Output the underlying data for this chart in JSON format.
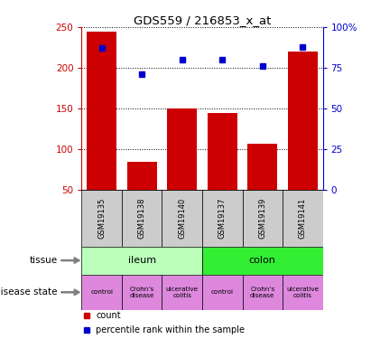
{
  "title": "GDS559 / 216853_x_at",
  "samples": [
    "GSM19135",
    "GSM19138",
    "GSM19140",
    "GSM19137",
    "GSM19139",
    "GSM19141"
  ],
  "count_values": [
    245,
    85,
    150,
    145,
    107,
    220
  ],
  "percentile_values": [
    87,
    71,
    80,
    80,
    76,
    88
  ],
  "bar_color": "#cc0000",
  "dot_color": "#0000cc",
  "ylim_left": [
    50,
    250
  ],
  "ylim_right": [
    0,
    100
  ],
  "yticks_left": [
    50,
    100,
    150,
    200,
    250
  ],
  "yticks_right": [
    0,
    25,
    50,
    75,
    100
  ],
  "ytick_labels_left": [
    "50",
    "100",
    "150",
    "200",
    "250"
  ],
  "ytick_labels_right": [
    "0",
    "25",
    "50",
    "75",
    "100%"
  ],
  "tissue_info": [
    {
      "label": "ileum",
      "start": 0,
      "end": 3,
      "color": "#bbffbb"
    },
    {
      "label": "colon",
      "start": 3,
      "end": 6,
      "color": "#33ee33"
    }
  ],
  "disease_labels": [
    "control",
    "Crohn’s\ndisease",
    "ulcerative\ncolitis",
    "control",
    "Crohn’s\ndisease",
    "ulcerative\ncolitis"
  ],
  "disease_color": "#dd88dd",
  "sample_bg_color": "#cccccc",
  "left_axis_color": "#cc0000",
  "right_axis_color": "#0000cc",
  "legend_count_label": "count",
  "legend_pct_label": "percentile rank within the sample",
  "tissue_row_label": "tissue",
  "disease_row_label": "disease state"
}
